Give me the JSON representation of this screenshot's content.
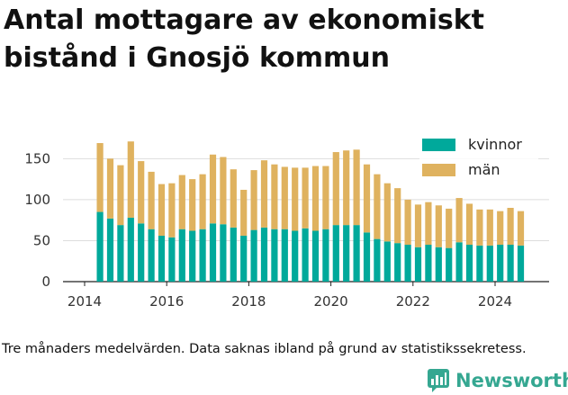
{
  "title": "Antal mottagare av ekonomiskt bistånd i Gnosjö kommun",
  "caption": "Tre månaders medelvärden. Data saknas ibland på grund av statistikssekretess.",
  "brand": {
    "name": "Newsworthy",
    "icon": "newsworthy-logo-icon",
    "color": "#35a791"
  },
  "chart_data": {
    "type": "bar",
    "stacked": true,
    "x_ticks": [
      "2014",
      "2016",
      "2018",
      "2020",
      "2022",
      "2024"
    ],
    "y_ticks": [
      "0",
      "50",
      "100",
      "150"
    ],
    "ylim": [
      0,
      180
    ],
    "grid": "horizontal",
    "legend_position": "top-right",
    "series": [
      {
        "name": "kvinnor",
        "color": "#00a99b",
        "values": [
          85,
          77,
          69,
          78,
          71,
          64,
          56,
          54,
          64,
          62,
          64,
          71,
          70,
          66,
          56,
          63,
          66,
          64,
          64,
          62,
          65,
          62,
          64,
          69,
          69,
          69,
          60,
          52,
          49,
          47,
          45,
          42,
          45,
          42,
          41,
          48,
          45,
          44,
          44,
          45,
          45,
          44
        ]
      },
      {
        "name": "män",
        "color": "#dfb25f",
        "values": [
          84,
          73,
          73,
          93,
          76,
          70,
          63,
          66,
          66,
          63,
          67,
          84,
          82,
          71,
          56,
          73,
          82,
          79,
          76,
          77,
          74,
          79,
          77,
          89,
          91,
          92,
          83,
          79,
          71,
          67,
          55,
          52,
          52,
          51,
          48,
          54,
          50,
          44,
          44,
          41,
          45,
          42
        ]
      }
    ]
  }
}
